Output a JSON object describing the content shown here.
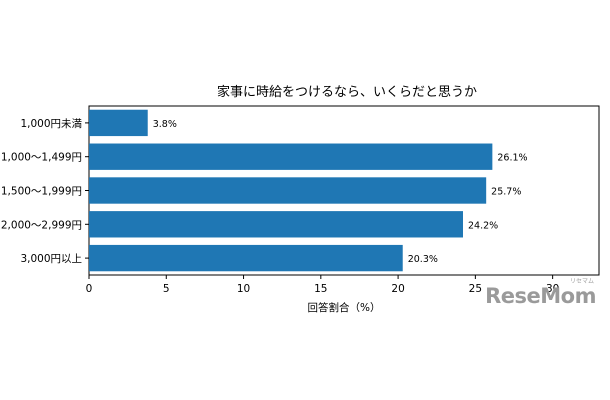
{
  "chart_data": {
    "type": "bar",
    "orientation": "horizontal",
    "title": "家事に時給をつけるなら、いくらだと思うか",
    "xlabel": "回答割合（%）",
    "ylabel": "",
    "categories": [
      "1,000円未満",
      "1,000～1,499円",
      "1,500～1,999円",
      "2,000～2,999円",
      "3,000円以上"
    ],
    "values": [
      3.8,
      26.1,
      25.7,
      24.2,
      20.3
    ],
    "value_labels": [
      "3.8%",
      "26.1%",
      "25.7%",
      "24.2%",
      "20.3%"
    ],
    "xlim": [
      0,
      33
    ],
    "xticks": [
      0,
      5,
      10,
      15,
      20,
      25,
      30
    ],
    "xtick_labels": [
      "0",
      "5",
      "10",
      "15",
      "20",
      "25",
      "30"
    ],
    "grid": false,
    "bar_color": "#1f77b4"
  },
  "watermark": {
    "text": "ReseMom",
    "ruby": "リセマム"
  }
}
